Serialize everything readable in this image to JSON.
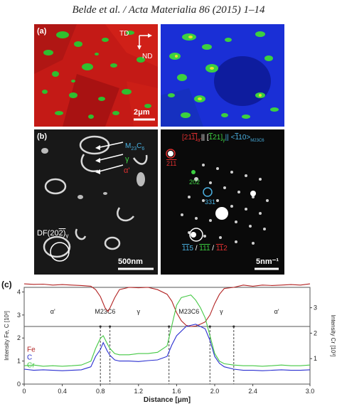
{
  "header": {
    "citation": "Belde et al. / Acta Materialia 86 (2015) 1–14"
  },
  "panel_a": {
    "label": "(a)",
    "direction_labels": [
      "TD",
      "ND"
    ],
    "scale_bar": "2μm"
  },
  "panel_b": {
    "label": "(b)",
    "left_labels": [
      "M",
      "23",
      "C",
      "6",
      "γ",
      "α'"
    ],
    "df_label": [
      "DF",
      "(20",
      "2)",
      "γ"
    ],
    "left_scale_bar": "500nm",
    "zone_axis": [
      "[21",
      "1]",
      "α'",
      "|| [",
      "1",
      "21]",
      "γ",
      "|| <",
      "1",
      "10>",
      "M23C6"
    ],
    "spot_labels": [
      "211",
      "202",
      "331"
    ],
    "bottom_label": [
      "11",
      "5",
      " / ",
      "11",
      "1",
      " / ",
      "11",
      "2"
    ],
    "right_scale_bar": "5nm⁻¹"
  },
  "panel_c": {
    "label": "(c)",
    "colors": {
      "Fe": "#b22222",
      "C": "#2a2fd0",
      "Cr": "#44c844"
    }
  },
  "chart_data": {
    "type": "line",
    "xlabel": "Distance [μm]",
    "ylabel_left": "Intensity Fe, C [10³]",
    "ylabel_right": "Intensity Cr [10³]",
    "xlim": [
      0,
      3.0
    ],
    "ylim_left": [
      0,
      4.2
    ],
    "ylim_right": [
      0,
      3.8
    ],
    "x_ticks": [
      "0",
      "0.4",
      "0.8",
      "1.2",
      "1.6",
      "2.0",
      "2.4",
      "3.0"
    ],
    "left_ticks": [
      "0",
      "1",
      "2",
      "3",
      "4"
    ],
    "right_ticks": [
      "1",
      "2",
      "3"
    ],
    "legend": [
      "Fe",
      "C",
      "Cr"
    ],
    "phase_labels": [
      "α'",
      "M23C6",
      "γ",
      "M23C6",
      "γ",
      "α'"
    ],
    "phase_boundaries": [
      0.8,
      0.9,
      1.52,
      1.95,
      2.2
    ],
    "series": [
      {
        "name": "Fe",
        "axis": "left",
        "x": [
          0,
          0.1,
          0.2,
          0.3,
          0.4,
          0.5,
          0.6,
          0.7,
          0.75,
          0.8,
          0.85,
          0.88,
          0.9,
          0.95,
          1.0,
          1.1,
          1.2,
          1.3,
          1.4,
          1.5,
          1.55,
          1.6,
          1.65,
          1.7,
          1.75,
          1.8,
          1.85,
          1.9,
          1.95,
          2.0,
          2.05,
          2.1,
          2.2,
          2.3,
          2.4,
          2.5,
          2.6,
          2.7,
          2.8,
          2.9,
          3.0
        ],
        "y": [
          4.35,
          4.33,
          4.34,
          4.3,
          4.32,
          4.3,
          4.28,
          4.25,
          4.1,
          3.8,
          3.3,
          3.15,
          3.3,
          3.75,
          4.1,
          4.2,
          4.18,
          4.2,
          4.1,
          3.9,
          3.6,
          3.1,
          2.75,
          2.55,
          2.5,
          2.52,
          2.6,
          2.7,
          3.0,
          3.5,
          3.9,
          4.15,
          4.2,
          4.3,
          4.25,
          4.3,
          4.28,
          4.3,
          4.32,
          4.3,
          4.35
        ]
      },
      {
        "name": "C",
        "axis": "left",
        "x": [
          0,
          0.1,
          0.2,
          0.3,
          0.4,
          0.5,
          0.6,
          0.7,
          0.75,
          0.8,
          0.83,
          0.87,
          0.9,
          0.95,
          1.0,
          1.1,
          1.2,
          1.3,
          1.4,
          1.5,
          1.55,
          1.6,
          1.65,
          1.7,
          1.75,
          1.8,
          1.85,
          1.9,
          1.95,
          2.0,
          2.05,
          2.1,
          2.2,
          2.3,
          2.4,
          2.5,
          2.6,
          2.7,
          2.8,
          2.9,
          3.0
        ],
        "y": [
          0.65,
          0.6,
          0.62,
          0.6,
          0.58,
          0.6,
          0.62,
          0.75,
          1.2,
          1.5,
          1.8,
          1.45,
          1.25,
          1.05,
          1.0,
          1.0,
          0.98,
          1.02,
          1.05,
          1.2,
          1.7,
          2.1,
          2.3,
          2.5,
          2.55,
          2.6,
          2.5,
          2.4,
          1.9,
          1.2,
          0.9,
          0.75,
          0.65,
          0.6,
          0.6,
          0.58,
          0.6,
          0.62,
          0.6,
          0.6,
          0.62
        ]
      },
      {
        "name": "Cr",
        "axis": "right",
        "x": [
          0,
          0.1,
          0.2,
          0.3,
          0.4,
          0.5,
          0.6,
          0.7,
          0.75,
          0.8,
          0.83,
          0.87,
          0.9,
          0.95,
          1.0,
          1.1,
          1.2,
          1.3,
          1.4,
          1.5,
          1.55,
          1.6,
          1.65,
          1.7,
          1.75,
          1.8,
          1.85,
          1.9,
          1.95,
          2.0,
          2.05,
          2.1,
          2.2,
          2.3,
          2.4,
          2.5,
          2.6,
          2.7,
          2.8,
          2.9,
          3.0
        ],
        "y": [
          0.72,
          0.75,
          0.7,
          0.72,
          0.7,
          0.72,
          0.75,
          0.9,
          1.4,
          1.8,
          1.9,
          1.6,
          1.4,
          1.2,
          1.15,
          1.15,
          1.2,
          1.2,
          1.25,
          1.5,
          2.3,
          3.1,
          3.4,
          3.45,
          3.5,
          3.3,
          3.0,
          2.6,
          1.9,
          1.2,
          0.9,
          0.8,
          0.75,
          0.72,
          0.72,
          0.7,
          0.72,
          0.75,
          0.72,
          0.72,
          0.75
        ]
      }
    ]
  }
}
